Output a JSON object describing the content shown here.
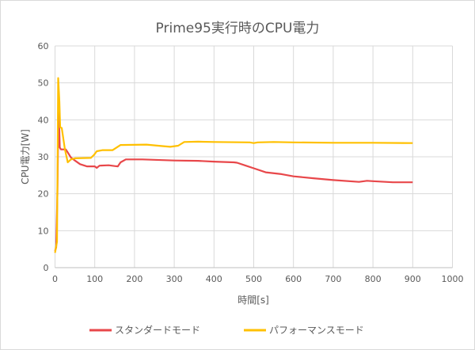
{
  "chart_data": {
    "type": "line",
    "title": "Prime95実行時のCPU電力",
    "xlabel": "時間[s]",
    "ylabel": "CPU電力[W]",
    "xlim": [
      0,
      1000
    ],
    "ylim": [
      0,
      60
    ],
    "xticks": [
      0,
      100,
      200,
      300,
      400,
      500,
      600,
      700,
      800,
      900,
      1000
    ],
    "yticks": [
      0,
      10,
      20,
      30,
      40,
      50,
      60
    ],
    "grid": true,
    "legend": "bottom",
    "series": [
      {
        "name": "スタンダードモード",
        "color": "#e8474a",
        "points": [
          [
            0,
            4.5
          ],
          [
            3,
            5.5
          ],
          [
            6,
            20
          ],
          [
            9,
            45
          ],
          [
            12,
            32.5
          ],
          [
            15,
            32
          ],
          [
            27,
            32
          ],
          [
            33,
            31
          ],
          [
            40,
            29.8
          ],
          [
            50,
            29
          ],
          [
            63,
            28
          ],
          [
            80,
            27.4
          ],
          [
            100,
            27.4
          ],
          [
            105,
            27
          ],
          [
            112,
            27.6
          ],
          [
            135,
            27.7
          ],
          [
            150,
            27.5
          ],
          [
            158,
            27.4
          ],
          [
            165,
            28.5
          ],
          [
            178,
            29.3
          ],
          [
            220,
            29.3
          ],
          [
            300,
            29
          ],
          [
            360,
            28.9
          ],
          [
            400,
            28.7
          ],
          [
            450,
            28.5
          ],
          [
            458,
            28.4
          ],
          [
            480,
            27.6
          ],
          [
            500,
            26.9
          ],
          [
            530,
            25.8
          ],
          [
            570,
            25.3
          ],
          [
            600,
            24.7
          ],
          [
            650,
            24.2
          ],
          [
            700,
            23.7
          ],
          [
            765,
            23.2
          ],
          [
            785,
            23.5
          ],
          [
            800,
            23.4
          ],
          [
            850,
            23.1
          ],
          [
            900,
            23.1
          ]
        ]
      },
      {
        "name": "パフォーマンスモード",
        "color": "#ffc000",
        "points": [
          [
            0,
            4
          ],
          [
            5,
            7
          ],
          [
            8,
            51.3
          ],
          [
            11,
            45
          ],
          [
            13,
            38
          ],
          [
            17,
            37.8
          ],
          [
            25,
            32
          ],
          [
            32,
            28.5
          ],
          [
            40,
            29.3
          ],
          [
            50,
            29.6
          ],
          [
            90,
            29.7
          ],
          [
            98,
            30.5
          ],
          [
            105,
            31.5
          ],
          [
            120,
            31.8
          ],
          [
            145,
            31.8
          ],
          [
            155,
            32.5
          ],
          [
            165,
            33.2
          ],
          [
            230,
            33.3
          ],
          [
            270,
            32.9
          ],
          [
            290,
            32.7
          ],
          [
            310,
            33
          ],
          [
            325,
            34
          ],
          [
            360,
            34.1
          ],
          [
            400,
            34
          ],
          [
            490,
            33.9
          ],
          [
            500,
            33.7
          ],
          [
            510,
            33.9
          ],
          [
            550,
            34
          ],
          [
            600,
            33.9
          ],
          [
            700,
            33.8
          ],
          [
            800,
            33.8
          ],
          [
            900,
            33.7
          ]
        ]
      }
    ]
  }
}
